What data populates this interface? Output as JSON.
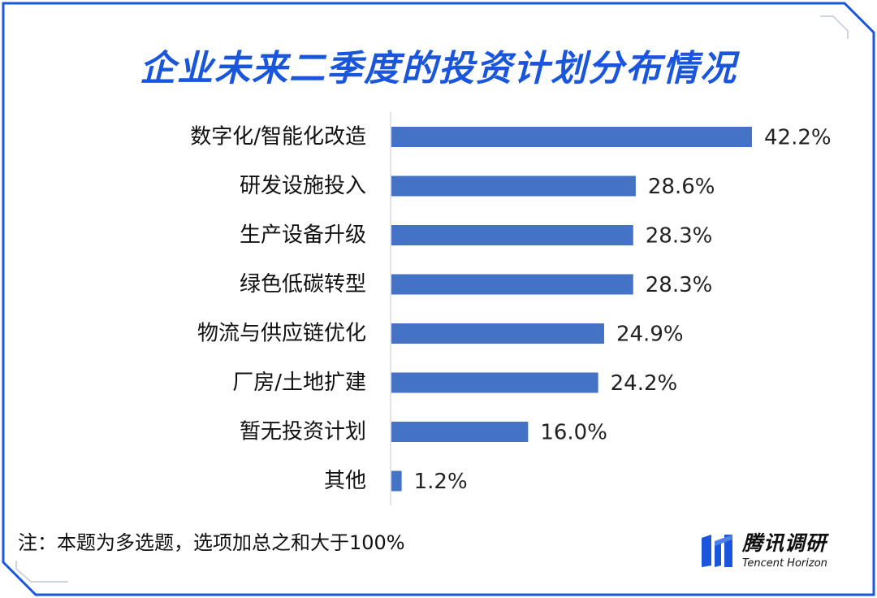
{
  "chart_data": {
    "type": "bar",
    "orientation": "horizontal",
    "title": "企业未来二季度的投资计划分布情况",
    "categories": [
      "数字化/智能化改造",
      "研发设施投入",
      "生产设备升级",
      "绿色低碳转型",
      "物流与供应链优化",
      "厂房/土地扩建",
      "暂无投资计划",
      "其他"
    ],
    "values": [
      42.2,
      28.6,
      28.3,
      28.3,
      24.9,
      24.2,
      16.0,
      1.2
    ],
    "value_labels": [
      "42.2%",
      "28.6%",
      "28.3%",
      "28.3%",
      "24.9%",
      "24.2%",
      "16.0%",
      "1.2%"
    ],
    "unit": "%",
    "bar_color": "#4472c4",
    "xlim": [
      0,
      45
    ],
    "grid": false,
    "legend": "none"
  },
  "note": "注：本题为多选题，选项加总之和大于100%",
  "logo": {
    "name_cn": "腾讯调研",
    "name_en": "Tencent Horizon"
  },
  "colors": {
    "title": "#1a56db",
    "frame": "#1a56db",
    "frame_accent": "#cfd5de",
    "bar": "#4472c4",
    "text": "#111111"
  }
}
